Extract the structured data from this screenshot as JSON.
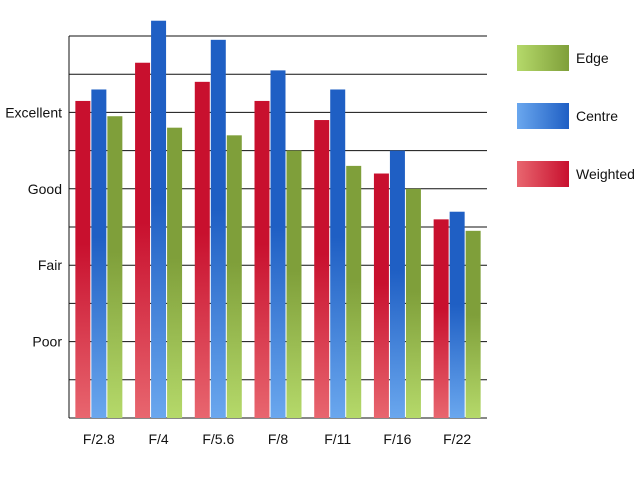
{
  "chart_data": {
    "type": "bar",
    "categories": [
      "F/2.8",
      "F/4",
      "F/5.6",
      "F/8",
      "F/11",
      "F/16",
      "F/22"
    ],
    "y_scale": {
      "min": 0,
      "max": 10,
      "gridlines": [
        0,
        1,
        2,
        3,
        4,
        5,
        6,
        7,
        8,
        9,
        10
      ],
      "tick_labels": [
        {
          "value": 2,
          "label": "Poor"
        },
        {
          "value": 4,
          "label": "Fair"
        },
        {
          "value": 6,
          "label": "Good"
        },
        {
          "value": 8,
          "label": "Excellent"
        }
      ]
    },
    "series": [
      {
        "name": "Weighted",
        "color": "#c8102e",
        "light": "#e8666f",
        "values": [
          8.3,
          9.3,
          8.8,
          8.3,
          7.8,
          6.4,
          5.2
        ]
      },
      {
        "name": "Centre",
        "color": "#1f5fc4",
        "light": "#6aa7ee",
        "values": [
          8.6,
          10.4,
          9.9,
          9.1,
          8.6,
          7.0,
          5.4
        ]
      },
      {
        "name": "Edge",
        "color": "#7f9f3a",
        "light": "#b5d96a",
        "values": [
          7.9,
          7.6,
          7.4,
          7.0,
          6.6,
          6.0,
          4.9
        ]
      }
    ],
    "legend": {
      "placement": "right",
      "order": [
        "Edge",
        "Centre",
        "Weighted"
      ]
    },
    "grid": true
  }
}
